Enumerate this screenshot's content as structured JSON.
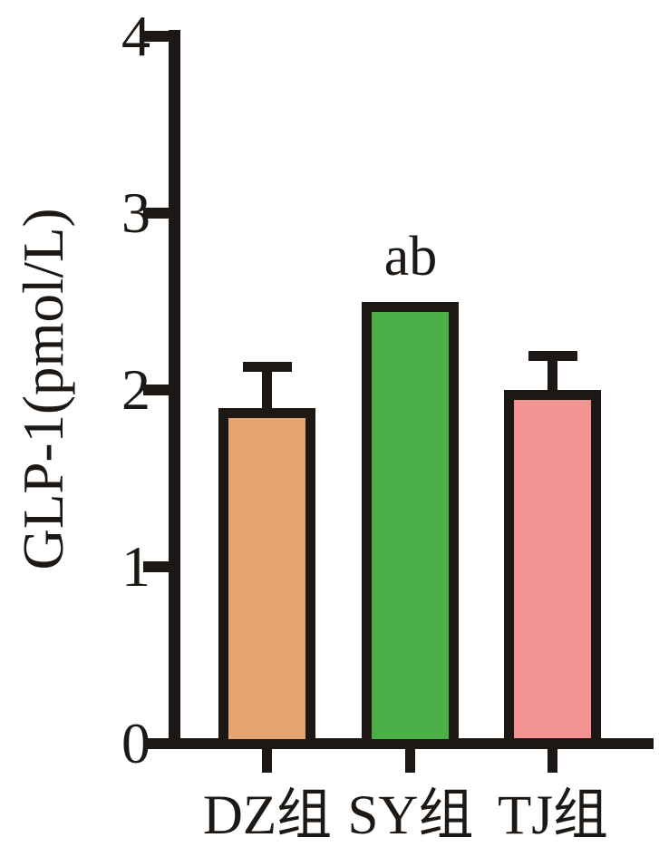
{
  "chart_data": {
    "type": "bar",
    "title": "",
    "ylabel": "GLP-1(pmol/L)",
    "xlabel": "",
    "categories": [
      "DZ组",
      "SY组",
      "TJ组"
    ],
    "values": [
      1.9,
      2.5,
      2.0
    ],
    "error_plus": [
      0.23,
      0,
      0.19
    ],
    "bar_colors": [
      "#E6A473",
      "#4CAE46",
      "#F49492"
    ],
    "axis_color": "#1D1814",
    "outline_color": "#1D1814",
    "ylim": [
      0,
      4
    ],
    "yticks": [
      0,
      1,
      2,
      3,
      4
    ],
    "grid": false,
    "legend": null,
    "annotations": [
      {
        "category": "SY组",
        "index": 1,
        "text": "ab"
      }
    ]
  }
}
